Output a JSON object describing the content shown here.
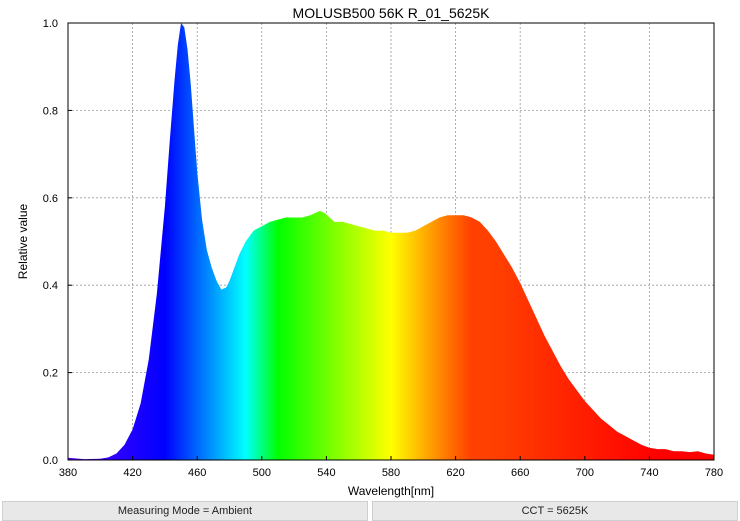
{
  "chart_data": {
    "type": "area",
    "title": "MOLUSB500 56K R_01_5625K",
    "xlabel": "Wavelength[nm]",
    "ylabel": "Relative value",
    "xlim": [
      380,
      780
    ],
    "ylim": [
      0,
      1.0
    ],
    "xticks": [
      380,
      420,
      460,
      500,
      540,
      580,
      620,
      660,
      700,
      740,
      780
    ],
    "yticks": [
      0.0,
      0.2,
      0.4,
      0.6,
      0.8,
      1.0
    ],
    "ytick_labels": [
      "0.0",
      "0.2",
      "0.4",
      "0.6",
      "0.8",
      "1.0"
    ],
    "grid": true,
    "fill": "visible-spectrum",
    "series": [
      {
        "x": [
          380,
          390,
          400,
          405,
          410,
          415,
          420,
          425,
          430,
          435,
          440,
          443,
          446,
          448,
          450,
          452,
          454,
          456,
          458,
          460,
          463,
          466,
          469,
          472,
          475,
          478,
          480,
          483,
          486,
          490,
          495,
          500,
          505,
          510,
          515,
          520,
          525,
          530,
          533,
          536,
          539,
          542,
          545,
          550,
          555,
          560,
          565,
          570,
          575,
          580,
          585,
          590,
          595,
          600,
          605,
          610,
          615,
          620,
          625,
          630,
          635,
          640,
          645,
          650,
          655,
          660,
          665,
          670,
          675,
          680,
          685,
          690,
          695,
          700,
          705,
          710,
          715,
          720,
          725,
          730,
          735,
          740,
          745,
          750,
          755,
          760,
          765,
          770,
          775,
          780
        ],
        "values": [
          0.005,
          0.002,
          0.003,
          0.006,
          0.015,
          0.035,
          0.07,
          0.13,
          0.23,
          0.38,
          0.58,
          0.73,
          0.87,
          0.95,
          1.0,
          0.99,
          0.94,
          0.86,
          0.76,
          0.66,
          0.55,
          0.48,
          0.44,
          0.41,
          0.39,
          0.395,
          0.41,
          0.44,
          0.47,
          0.5,
          0.525,
          0.535,
          0.545,
          0.55,
          0.555,
          0.555,
          0.555,
          0.56,
          0.565,
          0.57,
          0.565,
          0.555,
          0.545,
          0.545,
          0.54,
          0.535,
          0.53,
          0.525,
          0.525,
          0.52,
          0.52,
          0.52,
          0.525,
          0.535,
          0.545,
          0.555,
          0.56,
          0.56,
          0.56,
          0.555,
          0.545,
          0.525,
          0.5,
          0.47,
          0.44,
          0.405,
          0.365,
          0.325,
          0.285,
          0.25,
          0.215,
          0.185,
          0.16,
          0.135,
          0.115,
          0.095,
          0.08,
          0.065,
          0.055,
          0.045,
          0.035,
          0.028,
          0.025,
          0.025,
          0.02,
          0.02,
          0.018,
          0.02,
          0.015,
          0.012
        ]
      }
    ]
  },
  "footer": {
    "measuring_mode": "Measuring Mode = Ambient",
    "cct": "CCT = 5625K"
  }
}
